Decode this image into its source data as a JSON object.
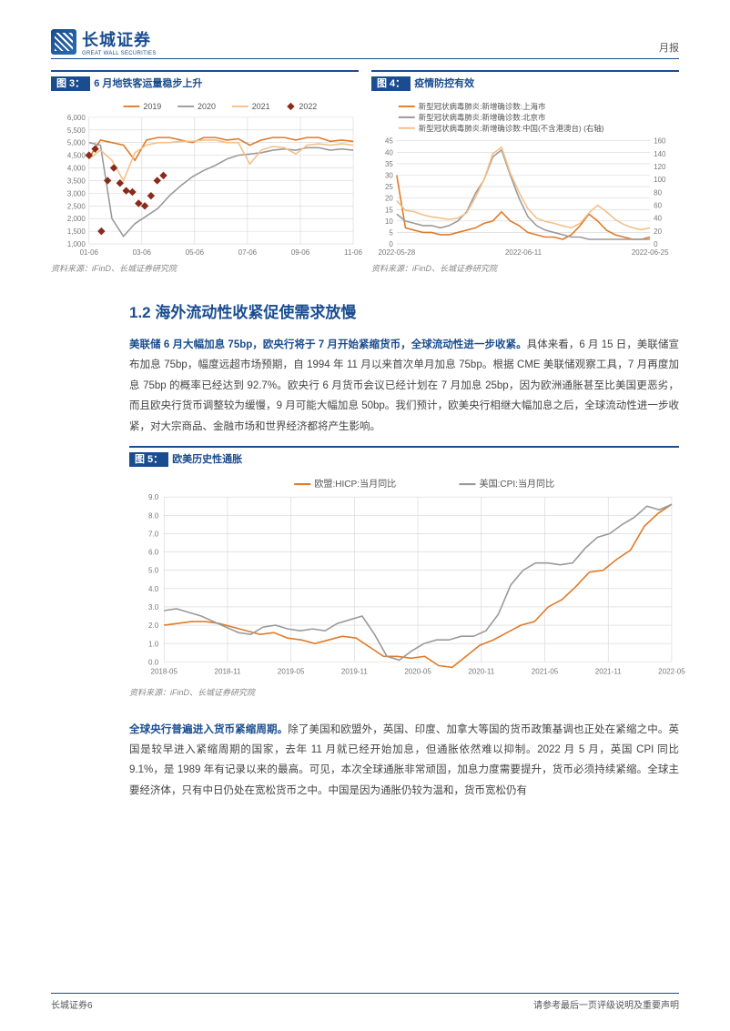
{
  "header": {
    "logo_cn": "长城证券",
    "logo_en": "GREAT WALL SECURITIES",
    "report_type": "月报"
  },
  "fig3": {
    "label": "图 3：",
    "caption": "6 月地铁客运量稳步上升",
    "source": "资料来源：iFinD、长城证券研究院",
    "type": "line+scatter",
    "x_labels": [
      "01-06",
      "03-06",
      "05-06",
      "07-06",
      "09-06",
      "11-06"
    ],
    "y_labels": [
      "1,000",
      "1,500",
      "2,000",
      "2,500",
      "3,000",
      "3,500",
      "4,000",
      "4,500",
      "5,000",
      "5,500",
      "6,000"
    ],
    "ylim": [
      1000,
      6000
    ],
    "series": [
      {
        "name": "2019",
        "color": "#e07b2a",
        "type": "line",
        "values": [
          4400,
          5100,
          5000,
          4900,
          4300,
          5100,
          5200,
          5200,
          5100,
          5000,
          5200,
          5200,
          5100,
          5150,
          4900,
          5100,
          5200,
          5200,
          5100,
          5200,
          5200,
          5050,
          5100,
          5050
        ]
      },
      {
        "name": "2020",
        "color": "#9a9a9a",
        "type": "line",
        "values": [
          5000,
          4900,
          2000,
          1300,
          1800,
          2100,
          2400,
          2900,
          3300,
          3650,
          3900,
          4100,
          4350,
          4500,
          4550,
          4600,
          4700,
          4750,
          4700,
          4800,
          4800,
          4700,
          4750,
          4700
        ]
      },
      {
        "name": "2021",
        "color": "#f4c08a",
        "type": "line",
        "values": [
          4350,
          4700,
          4300,
          3500,
          4600,
          4900,
          5000,
          5000,
          5050,
          5050,
          5100,
          5100,
          5000,
          5000,
          4150,
          4700,
          4850,
          4800,
          4550,
          4900,
          4950,
          4900,
          4950,
          4900
        ]
      },
      {
        "name": "2022",
        "color": "#8a2a1a",
        "type": "scatter",
        "marker": "diamond",
        "values": [
          4500,
          4750,
          1500,
          3500,
          4000,
          3400,
          3100,
          3050,
          2600,
          2500,
          2900,
          3500,
          3700
        ]
      }
    ],
    "background_color": "#ffffff",
    "grid_color": "#d5d5d5",
    "axis_fontsize": 8
  },
  "fig4": {
    "label": "图 4：",
    "caption": "疫情防控有效",
    "source": "资料来源：iFinD、长城证券研究院",
    "type": "line-dual-axis",
    "legend_items": [
      "新型冠状病毒肺炎:新增确诊数:上海市",
      "新型冠状病毒肺炎:新增确诊数:北京市",
      "新型冠状病毒肺炎:新增确诊数:中国(不含港澳台) (右轴)"
    ],
    "legend_colors": [
      "#e07b2a",
      "#9a9a9a",
      "#f4c08a"
    ],
    "x_labels": [
      "2022-05-28",
      "2022-06-11",
      "2022-06-25"
    ],
    "y_left_labels": [
      "0",
      "5",
      "10",
      "15",
      "20",
      "25",
      "30",
      "35",
      "40",
      "45"
    ],
    "y_right_labels": [
      "0",
      "20",
      "40",
      "60",
      "80",
      "100",
      "120",
      "140",
      "160"
    ],
    "ylim_left": [
      0,
      45
    ],
    "ylim_right": [
      0,
      160
    ],
    "series": [
      {
        "name": "shanghai",
        "color": "#e07b2a",
        "axis": "left",
        "values": [
          30,
          7,
          6,
          5,
          5,
          4,
          4,
          5,
          6,
          7,
          9,
          10,
          14,
          10,
          8,
          5,
          4,
          3,
          3,
          2,
          4,
          8,
          13,
          10,
          6,
          4,
          3,
          2,
          2,
          3
        ]
      },
      {
        "name": "beijing",
        "color": "#9a9a9a",
        "axis": "left",
        "values": [
          13,
          10,
          9,
          8,
          8,
          7,
          8,
          10,
          14,
          22,
          28,
          38,
          41,
          30,
          20,
          12,
          8,
          6,
          5,
          4,
          3,
          3,
          2,
          2,
          2,
          2,
          2,
          2,
          2,
          2
        ]
      },
      {
        "name": "china",
        "color": "#f4c08a",
        "axis": "right",
        "values": [
          67,
          52,
          50,
          45,
          42,
          40,
          38,
          40,
          48,
          72,
          100,
          140,
          150,
          110,
          80,
          55,
          40,
          35,
          32,
          28,
          25,
          32,
          48,
          60,
          50,
          38,
          30,
          25,
          22,
          25
        ]
      }
    ],
    "background_color": "#ffffff",
    "grid_color": "#d5d5d5"
  },
  "section_1_2": {
    "title": "1.2   海外流动性收紧促使需求放慢"
  },
  "para1_lead": "美联储 6 月大幅加息 75bp，欧央行将于 7 月开始紧缩货币，全球流动性进一步收紧。",
  "para1_body": "具体来看，6 月 15 日，美联储宣布加息 75bp，幅度远超市场预期，自 1994 年 11 月以来首次单月加息 75bp。根据 CME 美联储观察工具，7 月再度加息 75bp 的概率已经达到 92.7%。欧央行 6 月货币会议已经计划在 7 月加息 25bp，因为欧洲通胀甚至比美国更恶劣，而且欧央行货币调整较为缓慢，9 月可能大幅加息 50bp。我们预计，欧美央行相继大幅加息之后，全球流动性进一步收紧，对大宗商品、金融市场和世界经济都将产生影响。",
  "fig5": {
    "label": "图 5：",
    "caption": "欧美历史性通胀",
    "source": "资料来源：iFinD、长城证券研究院",
    "type": "line",
    "legend_items": [
      "欧盟:HICP:当月同比",
      "美国:CPI:当月同比"
    ],
    "legend_colors": [
      "#e07b2a",
      "#9a9a9a"
    ],
    "x_labels": [
      "2018-05",
      "2018-11",
      "2019-05",
      "2019-11",
      "2020-05",
      "2020-11",
      "2021-05",
      "2021-11",
      "2022-05"
    ],
    "y_labels": [
      "0.0",
      "1.0",
      "2.0",
      "3.0",
      "4.0",
      "5.0",
      "6.0",
      "7.0",
      "8.0",
      "9.0"
    ],
    "ylim": [
      0,
      9
    ],
    "series": [
      {
        "name": "eu_hicp",
        "color": "#e07b2a",
        "values": [
          2.0,
          2.1,
          2.2,
          2.2,
          2.1,
          1.9,
          1.7,
          1.5,
          1.6,
          1.3,
          1.2,
          1.0,
          1.2,
          1.4,
          1.3,
          0.8,
          0.3,
          0.3,
          0.2,
          0.3,
          -0.2,
          -0.3,
          0.3,
          0.9,
          1.2,
          1.6,
          2.0,
          2.2,
          3.0,
          3.4,
          4.1,
          4.9,
          5.0,
          5.6,
          6.1,
          7.4,
          8.1,
          8.6
        ]
      },
      {
        "name": "us_cpi",
        "color": "#9a9a9a",
        "values": [
          2.8,
          2.9,
          2.7,
          2.5,
          2.2,
          1.9,
          1.6,
          1.5,
          1.9,
          2.0,
          1.8,
          1.7,
          1.8,
          1.7,
          2.1,
          2.3,
          2.5,
          1.5,
          0.3,
          0.1,
          0.6,
          1.0,
          1.2,
          1.2,
          1.4,
          1.4,
          1.7,
          2.6,
          4.2,
          5.0,
          5.4,
          5.4,
          5.3,
          5.4,
          6.2,
          6.8,
          7.0,
          7.5,
          7.9,
          8.5,
          8.3,
          8.6
        ]
      }
    ],
    "background_color": "#ffffff",
    "grid_color": "#d5d5d5",
    "line_width": 1.8
  },
  "para2_lead": "全球央行普遍进入货币紧缩周期。",
  "para2_body": "除了美国和欧盟外，英国、印度、加拿大等国的货币政策基调也正处在紧缩之中。英国是较早进入紧缩周期的国家，去年 11 月就已经开始加息，但通胀依然难以抑制。2022 月 5 月，英国 CPI 同比 9.1%，是 1989 年有记录以来的最高。可见，本次全球通胀非常顽固，加息力度需要提升，货币必须持续紧缩。全球主要经济体，只有中日仍处在宽松货币之中。中国是因为通胀仍较为温和，货币宽松仍有",
  "footer": {
    "left": "长城证券6",
    "right": "请参考最后一页评级说明及重要声明"
  }
}
